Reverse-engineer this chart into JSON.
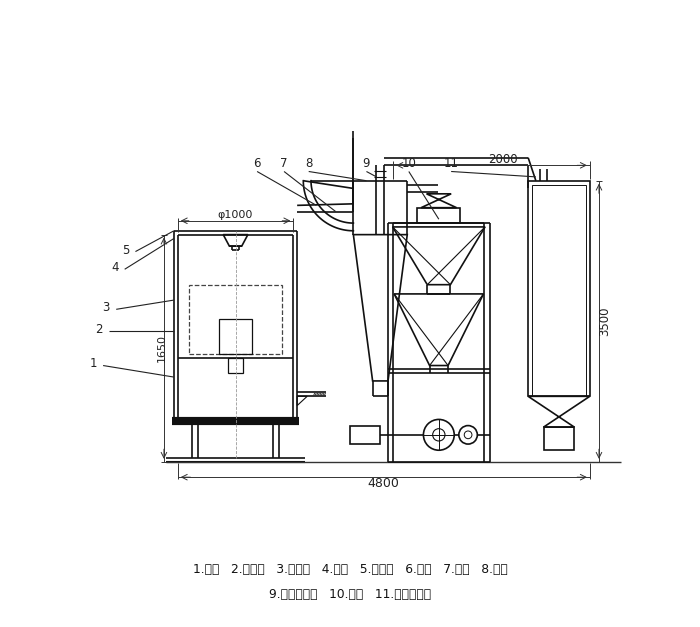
{
  "bg_color": "#ffffff",
  "lc": "#111111",
  "dim_color": "#222222",
  "label1": "1.底座   2.回风道   3.激振器   4.筛网   5.进料斗   6.风机   7.绞龙   8.料仓",
  "label2": "9.旋风分离器   10.支架   11.布袋除尘器",
  "dim_phi1000": "φ1000",
  "dim_1650": "1650",
  "dim_2000": "2000",
  "dim_3500": "3500",
  "dim_4800": "4800"
}
